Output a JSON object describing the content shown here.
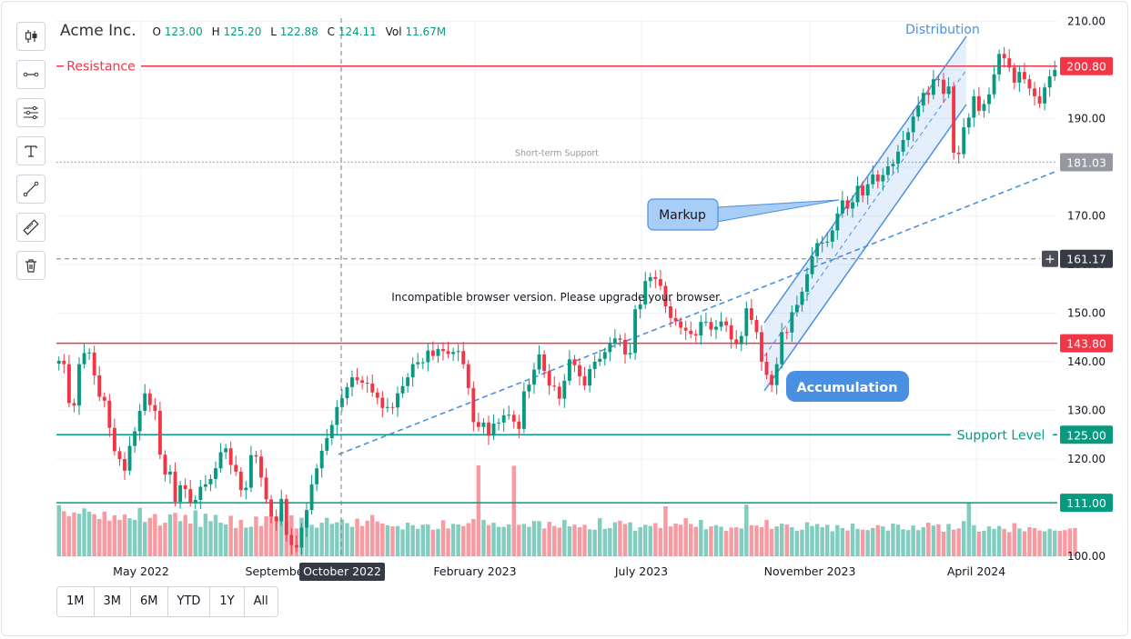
{
  "legend": {
    "symbol": "Acme Inc.",
    "o_label": "O",
    "o_value": "123.00",
    "h_label": "H",
    "h_value": "125.20",
    "l_label": "L",
    "l_value": "122.88",
    "c_label": "C",
    "c_value": "124.11",
    "vol_label": "Vol",
    "vol_value": "11.67M"
  },
  "toolbar": {
    "tools": [
      "candlestick-icon",
      "horizontal-line-icon",
      "parallel-lines-icon",
      "text-icon",
      "trend-line-icon",
      "ruler-icon",
      "trash-icon"
    ]
  },
  "ranges": [
    "1M",
    "3M",
    "6M",
    "YTD",
    "1Y",
    "All"
  ],
  "chart_data": {
    "type": "candlestick",
    "x_ticks": [
      "May 2022",
      "September 2022",
      "February 2023",
      "July 2023",
      "November 2023",
      "April 2024"
    ],
    "crosshair_label": "October 2022",
    "y_ticks": [
      100,
      110,
      120,
      130,
      140,
      150,
      160,
      170,
      180,
      190,
      200,
      210
    ],
    "y_tick_labels": [
      "100.00",
      "110.00",
      "120.00",
      "130.00",
      "140.00",
      "150.00",
      "160.00",
      "170.00",
      "180.00",
      "190.00",
      "200.00",
      "210.00"
    ],
    "ylim": [
      99,
      211
    ],
    "crosshair_price": "161.17",
    "notice": "Incompatible browser version. Please upgrade your browser.",
    "levels": [
      {
        "name": "Resistance",
        "value": 200.8,
        "label": "200.80",
        "color": "#f23645"
      },
      {
        "name": "",
        "value": 143.8,
        "label": "143.80",
        "color": "#f23645"
      },
      {
        "name": "Support Level",
        "value": 125.0,
        "label": "125.00",
        "color": "#089981"
      },
      {
        "name": "",
        "value": 111.0,
        "label": "111.00",
        "color": "#089981"
      },
      {
        "name": "Short-term Support",
        "value": 181.03,
        "label": "181.03",
        "color": "#9598a1"
      }
    ],
    "annotations": {
      "distribution": "Distribution",
      "markup": "Markup",
      "accumulation": "Accumulation"
    },
    "colors": {
      "up": "#089981",
      "down": "#f23645",
      "annotation": "#4a90e2"
    },
    "closes": [
      140.2,
      139.5,
      131.5,
      131.0,
      139.5,
      141.8,
      141.9,
      137.2,
      132.8,
      132.0,
      126.4,
      121.6,
      120.0,
      117.6,
      122.7,
      125.7,
      129.9,
      133.5,
      131.1,
      129.9,
      120.9,
      116.8,
      117.4,
      111.2,
      114.6,
      113.8,
      111.1,
      111.6,
      114.3,
      114.8,
      115.9,
      118.1,
      121.4,
      122.2,
      118.8,
      117.4,
      113.6,
      114.1,
      120.8,
      120.5,
      116.2,
      111.7,
      108.2,
      107.2,
      111.8,
      104.4,
      102.3,
      101.8,
      105.9,
      109.5,
      114.8,
      118.1,
      121.7,
      124.3,
      127.0,
      130.7,
      132.5,
      134.8,
      136.8,
      136.2,
      135.7,
      135.5,
      133.7,
      132.6,
      130.5,
      130.7,
      130.6,
      133.5,
      135.0,
      136.8,
      139.5,
      139.9,
      139.9,
      142.3,
      141.2,
      142.6,
      142.2,
      141.6,
      142.0,
      142.2,
      139.5,
      134.6,
      127.6,
      126.6,
      127.5,
      124.8,
      127.3,
      127.5,
      129.0,
      129.1,
      127.7,
      126.2,
      133.9,
      135.3,
      138.4,
      141.5,
      138.1,
      135.1,
      134.9,
      132.4,
      136.1,
      140.5,
      139.3,
      137.0,
      135.1,
      138.5,
      140.0,
      140.6,
      142.0,
      143.7,
      144.8,
      144.5,
      141.5,
      141.8,
      150.8,
      151.8,
      156.6,
      157.4,
      157.0,
      155.6,
      151.4,
      149.0,
      148.3,
      147.0,
      146.4,
      145.7,
      145.4,
      148.2,
      148.2,
      146.6,
      147.2,
      148.3,
      147.5,
      144.6,
      143.6,
      145.3,
      151.0,
      148.6,
      146.1,
      140.0,
      137.3,
      135.2,
      139.5,
      146.1,
      146.0,
      150.2,
      151.7,
      154.4,
      158.0,
      161.7,
      164.4,
      164.5,
      164.7,
      167.0,
      170.5,
      173.2,
      171.5,
      172.8,
      176.2,
      174.2,
      176.5,
      178.5,
      177.1,
      178.4,
      180.2,
      180.7,
      183.2,
      185.6,
      187.2,
      190.4,
      192.7,
      195.3,
      194.9,
      198.1,
      198.0,
      195.1,
      196.6,
      183.0,
      182.7,
      188.2,
      190.2,
      194.6,
      191.6,
      193.0,
      195.0,
      199.1,
      203.3,
      202.4,
      200.5,
      197.4,
      199.6,
      198.1,
      196.2,
      194.6,
      193.1,
      196.4,
      198.7,
      200.0
    ],
    "volumes": [
      12.5,
      11.0,
      9.8,
      10.7,
      10.4,
      11.7,
      10.9,
      10.3,
      9.1,
      10.9,
      8.7,
      10.0,
      8.9,
      10.2,
      9.3,
      8.9,
      11.8,
      8.4,
      9.4,
      10.3,
      7.5,
      8.2,
      10.2,
      10.6,
      8.6,
      10.1,
      8.0,
      11.2,
      7.2,
      10.4,
      8.6,
      10.1,
      8.2,
      7.8,
      9.9,
      6.9,
      8.9,
      7.0,
      7.2,
      9.7,
      7.4,
      9.8,
      9.8,
      9.5,
      10.7,
      8.5,
      10.0,
      6.8,
      9.4,
      8.6,
      7.7,
      7.0,
      8.2,
      9.4,
      7.9,
      8.3,
      9.0,
      8.1,
      7.2,
      9.2,
      7.4,
      8.7,
      10.1,
      8.5,
      8.0,
      7.6,
      7.3,
      7.4,
      6.6,
      8.2,
      7.6,
      6.7,
      7.7,
      7.8,
      6.5,
      6.7,
      8.8,
      6.8,
      7.9,
      7.8,
      7.4,
      8.1,
      9.1,
      22.2,
      8.9,
      7.6,
      8.2,
      7.2,
      7.2,
      7.8,
      22.1,
      7.7,
      7.9,
      7.2,
      8.6,
      8.6,
      6.8,
      8.4,
      7.4,
      7.0,
      8.9,
      7.3,
      7.7,
      7.1,
      7.7,
      6.6,
      6.5,
      9.3,
      6.7,
      6.9,
      8.3,
      8.7,
      7.9,
      8.3,
      6.2,
      7.1,
      7.7,
      7.4,
      8.1,
      6.9,
      12.2,
      7.3,
      8.0,
      7.7,
      9.3,
      7.9,
      7.2,
      8.9,
      6.6,
      7.3,
      7.6,
      7.2,
      6.2,
      7.0,
      7.1,
      6.8,
      12.6,
      7.6,
      7.5,
      7.1,
      8.9,
      6.7,
      7.3,
      8.0,
      7.8,
      7.1,
      6.2,
      6.5,
      8.3,
      7.4,
      7.9,
      7.1,
      7.7,
      6.1,
      7.6,
      6.9,
      6.3,
      8.0,
      6.7,
      6.5,
      6.4,
      6.9,
      7.6,
      7.3,
      6.3,
      8.0,
      7.7,
      6.6,
      6.4,
      7.5,
      6.4,
      7.1,
      8.2,
      7.5,
      7.8,
      6.0,
      7.9,
      6.5,
      6.8,
      8.6,
      13.2,
      7.6,
      6.0,
      6.2,
      7.3,
      6.7,
      7.4,
      6.7,
      5.9,
      8.1,
      6.8,
      6.1,
      7.1,
      6.9,
      6.3,
      6.1,
      6.7,
      6.3,
      6.2,
      6.4,
      6.8,
      6.9
    ]
  }
}
